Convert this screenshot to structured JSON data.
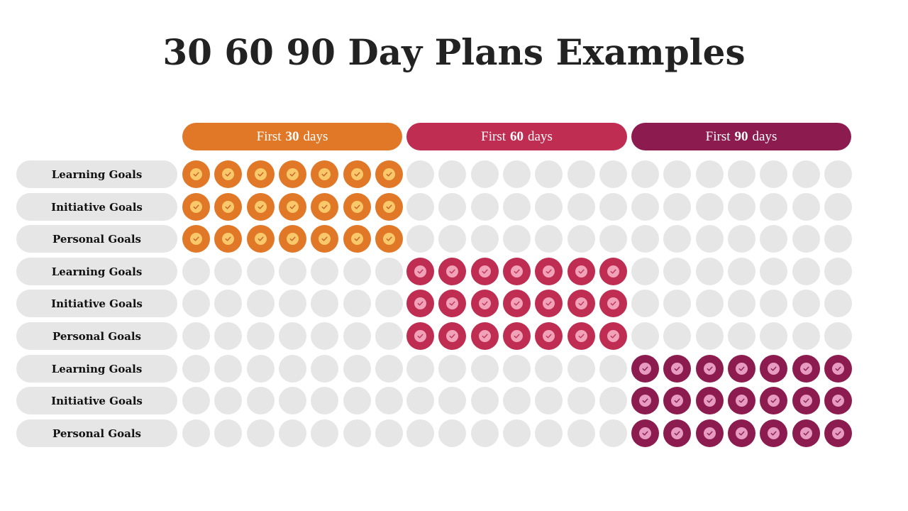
{
  "title": "30 60 90 Day Plans Examples",
  "phases": [
    {
      "prefix": "First",
      "number": "30",
      "suffix": "days",
      "color": "#e07828",
      "inner": "#f9c86a",
      "check": "#c9652a"
    },
    {
      "prefix": "First",
      "number": "60",
      "suffix": "days",
      "color": "#bf2e52",
      "inner": "#f2a2b8",
      "check": "#c23a5c"
    },
    {
      "prefix": "First",
      "number": "90",
      "suffix": "days",
      "color": "#8c1c50",
      "inner": "#e89bc0",
      "check": "#8c2458"
    }
  ],
  "dots_per_phase": 7,
  "inactive_color": "#e6e6e6",
  "rows": [
    {
      "label": "Learning Goals",
      "active_phase": 0
    },
    {
      "label": "Initiative Goals",
      "active_phase": 0
    },
    {
      "label": "Personal Goals",
      "active_phase": 0
    },
    {
      "label": "Learning Goals",
      "active_phase": 1
    },
    {
      "label": "Initiative Goals",
      "active_phase": 1
    },
    {
      "label": "Personal Goals",
      "active_phase": 1
    },
    {
      "label": "Learning Goals",
      "active_phase": 2
    },
    {
      "label": "Initiative Goals",
      "active_phase": 2
    },
    {
      "label": "Personal Goals",
      "active_phase": 2
    }
  ]
}
